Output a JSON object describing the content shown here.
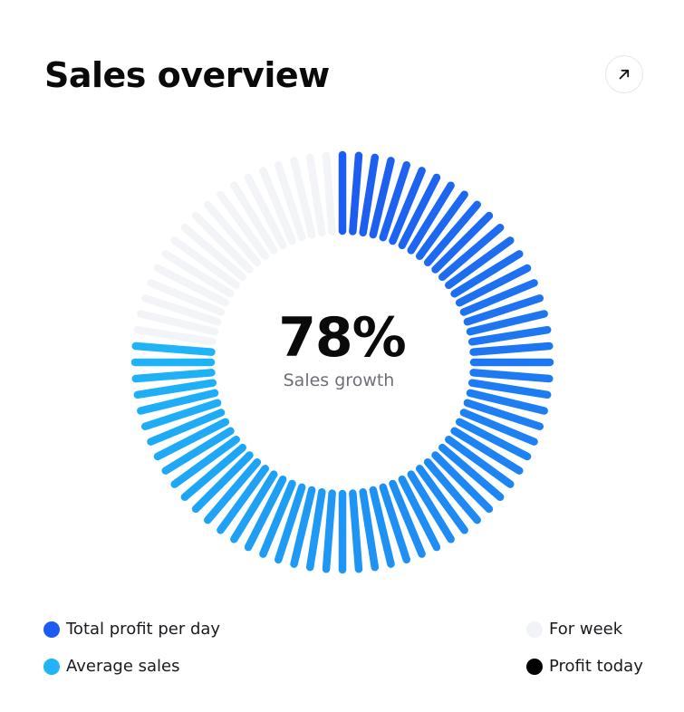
{
  "header": {
    "title": "Sales overview",
    "expand_icon": "arrow-up-right-icon"
  },
  "colors": {
    "total_profit": "#1d5cf0",
    "average_sales": "#1eb4f7",
    "for_week": "#f1f3f7",
    "profit_today": "#000000",
    "track": "#f2f4f8"
  },
  "chart_data": {
    "type": "radial-gauge",
    "value": 78,
    "value_label": "78%",
    "label": "Sales growth",
    "segments": 80,
    "filled_fraction": 0.78,
    "gradient_from": "#1d5cf0",
    "gradient_to": "#1eb4f7",
    "track_color": "#f2f4f8"
  },
  "legend": {
    "items": [
      {
        "label": "Total profit per day",
        "color": "#1d5cf0"
      },
      {
        "label": "Average sales",
        "color": "#1eb4f7"
      },
      {
        "label": "For week",
        "color": "#f1f3f7"
      },
      {
        "label": "Profit today",
        "color": "#000000"
      }
    ]
  }
}
